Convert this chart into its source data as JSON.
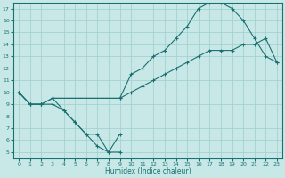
{
  "xlabel": "Humidex (Indice chaleur)",
  "xlim": [
    -0.5,
    23.5
  ],
  "ylim": [
    4.5,
    17.5
  ],
  "xticks": [
    0,
    1,
    2,
    3,
    4,
    5,
    6,
    7,
    8,
    9,
    10,
    11,
    12,
    13,
    14,
    15,
    16,
    17,
    18,
    19,
    20,
    21,
    22,
    23
  ],
  "yticks": [
    5,
    6,
    7,
    8,
    9,
    10,
    11,
    12,
    13,
    14,
    15,
    16,
    17
  ],
  "background_color": "#c8e8e8",
  "line_color": "#1a7070",
  "grid_color": "#9ecece",
  "line1_x": [
    0,
    1,
    2,
    3,
    4,
    5,
    6,
    7,
    8,
    9
  ],
  "line1_y": [
    10,
    9,
    9,
    9,
    8.5,
    7.5,
    6.5,
    5.5,
    5,
    5
  ],
  "line2_x": [
    0,
    1,
    2,
    3,
    9,
    10,
    11,
    12,
    13,
    14,
    15,
    16,
    17,
    18,
    19,
    20,
    21,
    22,
    23
  ],
  "line2_y": [
    10,
    9,
    9,
    9.5,
    9.5,
    11.5,
    12,
    13,
    13.5,
    14.5,
    15.5,
    17,
    17.5,
    17.5,
    17,
    16,
    14.5,
    13,
    12.5
  ],
  "line3_x": [
    0,
    1,
    2,
    3,
    9,
    10,
    11,
    12,
    13,
    14,
    15,
    16,
    17,
    18,
    19,
    20,
    21,
    22,
    23
  ],
  "line3_y": [
    10,
    9,
    9,
    9.5,
    9.5,
    10,
    10.5,
    11,
    11.5,
    12,
    12.5,
    13,
    13.5,
    13.5,
    13.5,
    14,
    14,
    14.5,
    12.5
  ],
  "line4_x": [
    3,
    4,
    5,
    6,
    7,
    8,
    9
  ],
  "line4_y": [
    9.5,
    8.5,
    7.5,
    6.5,
    6.5,
    5,
    6.5
  ]
}
